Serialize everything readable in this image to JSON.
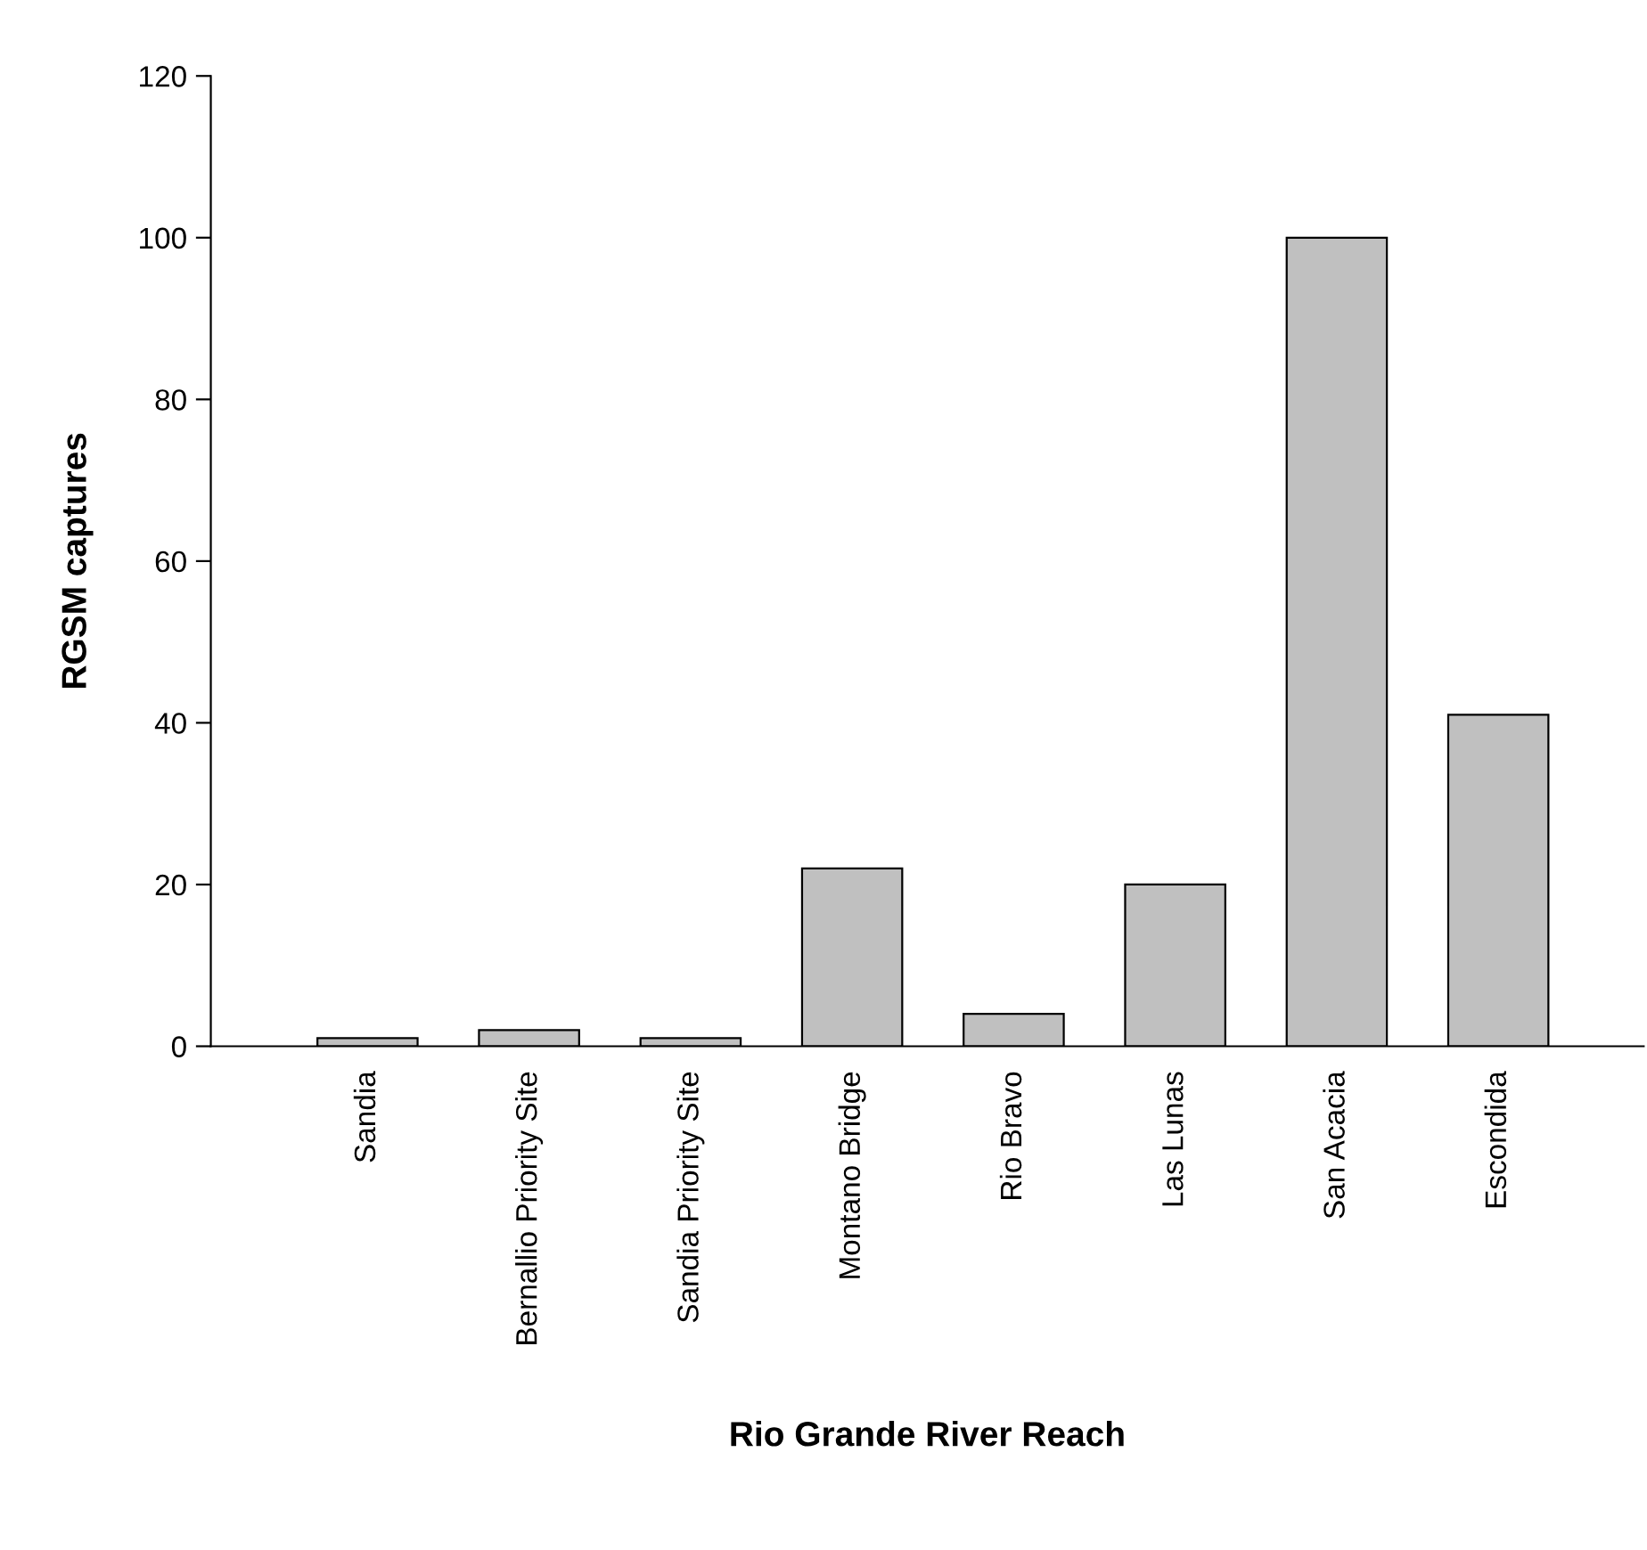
{
  "chart_data": {
    "type": "bar",
    "xlabel": "Rio Grande River Reach",
    "ylabel": "RGSM captures",
    "categories": [
      "Sandia",
      "Bernallio Priority Site",
      "Sandia Priority Site",
      "Montano Bridge",
      "Rio Bravo",
      "Las Lunas",
      "San Acacia",
      "Escondida"
    ],
    "values": [
      1,
      2,
      1,
      22,
      4,
      20,
      100,
      41
    ],
    "color": "#c0c0c0",
    "ylim": [
      0,
      120
    ],
    "yticks": [
      0,
      20,
      40,
      60,
      80,
      100,
      120
    ],
    "grid": false,
    "legend": false
  }
}
